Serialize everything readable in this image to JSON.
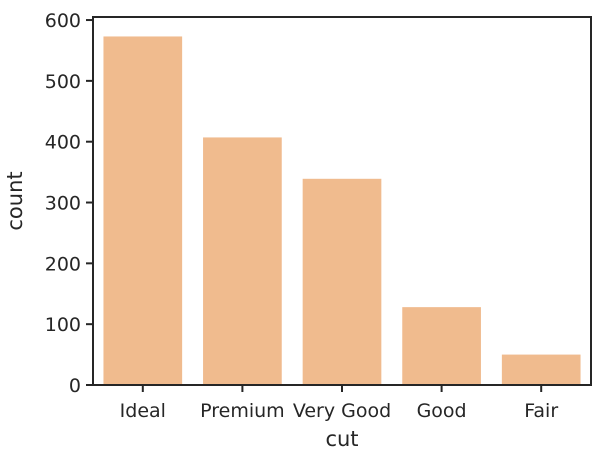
{
  "chart_data": {
    "type": "bar",
    "categories": [
      "Ideal",
      "Premium",
      "Very Good",
      "Good",
      "Fair"
    ],
    "values": [
      573,
      407,
      339,
      128,
      50
    ],
    "title": "",
    "xlabel": "cut",
    "ylabel": "count",
    "ylim": [
      0,
      605
    ],
    "yticks": [
      0,
      100,
      200,
      300,
      400,
      500,
      600
    ],
    "grid": false,
    "bar_color": "#f0bb8e",
    "axis_color": "#262626"
  }
}
